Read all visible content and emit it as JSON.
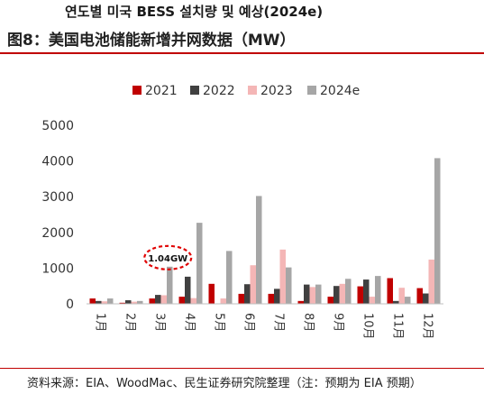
{
  "header": {
    "korean_title": "연도별 미국 BESS 설치량 및 예상(2024e)",
    "figure_title": "图8：美国电池储能新增并网数据（MW）"
  },
  "source": "资料来源：EIA、WoodMac、民生证券研究院整理（注：预期为 EIA 预期）",
  "colors": {
    "2021": "#c00000",
    "2022": "#404040",
    "2023": "#f4b6b6",
    "2024e": "#a6a6a6",
    "accent_rule": "#c00000",
    "annotation_ring": "#e00000"
  },
  "chart_data": {
    "type": "bar",
    "title": "",
    "xlabel": "",
    "ylabel": "",
    "ylim": [
      0,
      5000
    ],
    "yticks": [
      0,
      1000,
      2000,
      3000,
      4000,
      5000
    ],
    "legend_position": "top",
    "grid": false,
    "categories": [
      "1月",
      "2月",
      "3月",
      "4月",
      "5月",
      "6月",
      "7月",
      "8月",
      "9月",
      "10月",
      "11月",
      "12月"
    ],
    "series": [
      {
        "name": "2021",
        "values": [
          150,
          30,
          150,
          200,
          560,
          280,
          280,
          80,
          200,
          490,
          720,
          440
        ]
      },
      {
        "name": "2022",
        "values": [
          80,
          100,
          250,
          760,
          0,
          550,
          420,
          540,
          500,
          680,
          80,
          290
        ]
      },
      {
        "name": "2023",
        "values": [
          70,
          60,
          240,
          160,
          150,
          1080,
          1520,
          470,
          560,
          200,
          450,
          1240
        ]
      },
      {
        "name": "2024e",
        "values": [
          150,
          80,
          1040,
          2270,
          1480,
          3020,
          1020,
          540,
          700,
          780,
          200,
          4080
        ]
      }
    ],
    "annotation": {
      "text": "1.04GW",
      "category": "3月",
      "series": "2024e"
    }
  }
}
